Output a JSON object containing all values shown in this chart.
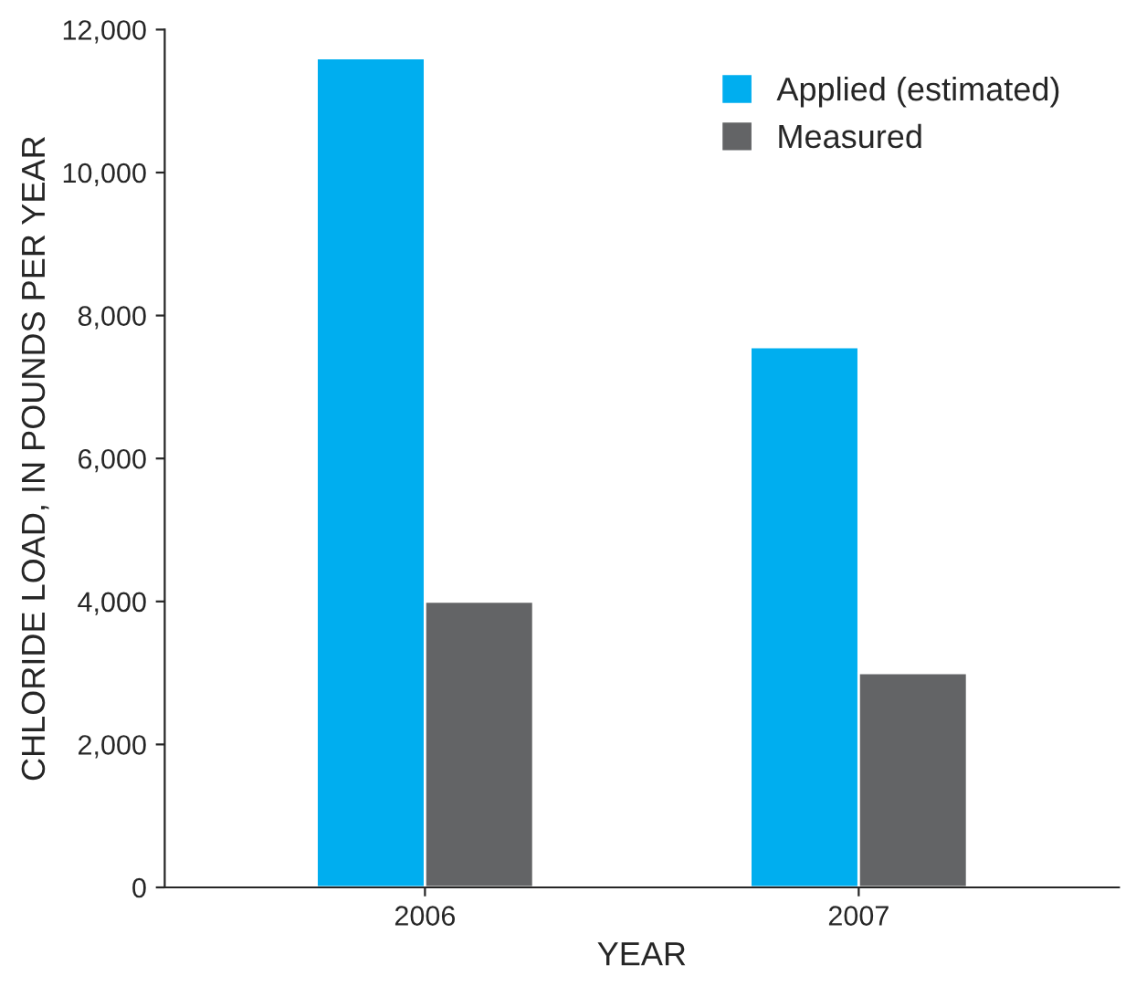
{
  "chart_data": {
    "type": "bar",
    "xlabel": "YEAR",
    "ylabel": "CHLORIDE LOAD, IN POUNDS PER YEAR",
    "categories": [
      "2006",
      "2007"
    ],
    "series": [
      {
        "name": "Applied (estimated)",
        "color": "#00aeef",
        "values": [
          11600,
          7560
        ]
      },
      {
        "name": "Measured",
        "color": "#636466",
        "values": [
          4000,
          3000
        ]
      }
    ],
    "ylim": [
      0,
      12000
    ],
    "yticks": [
      {
        "value": 0,
        "label": "0"
      },
      {
        "value": 2000,
        "label": "2,000"
      },
      {
        "value": 4000,
        "label": "4,000"
      },
      {
        "value": 6000,
        "label": "6,000"
      },
      {
        "value": 8000,
        "label": "8,000"
      },
      {
        "value": 10000,
        "label": "10,000"
      },
      {
        "value": 12000,
        "label": "12,000"
      }
    ],
    "grid": false,
    "legend": "top right"
  }
}
